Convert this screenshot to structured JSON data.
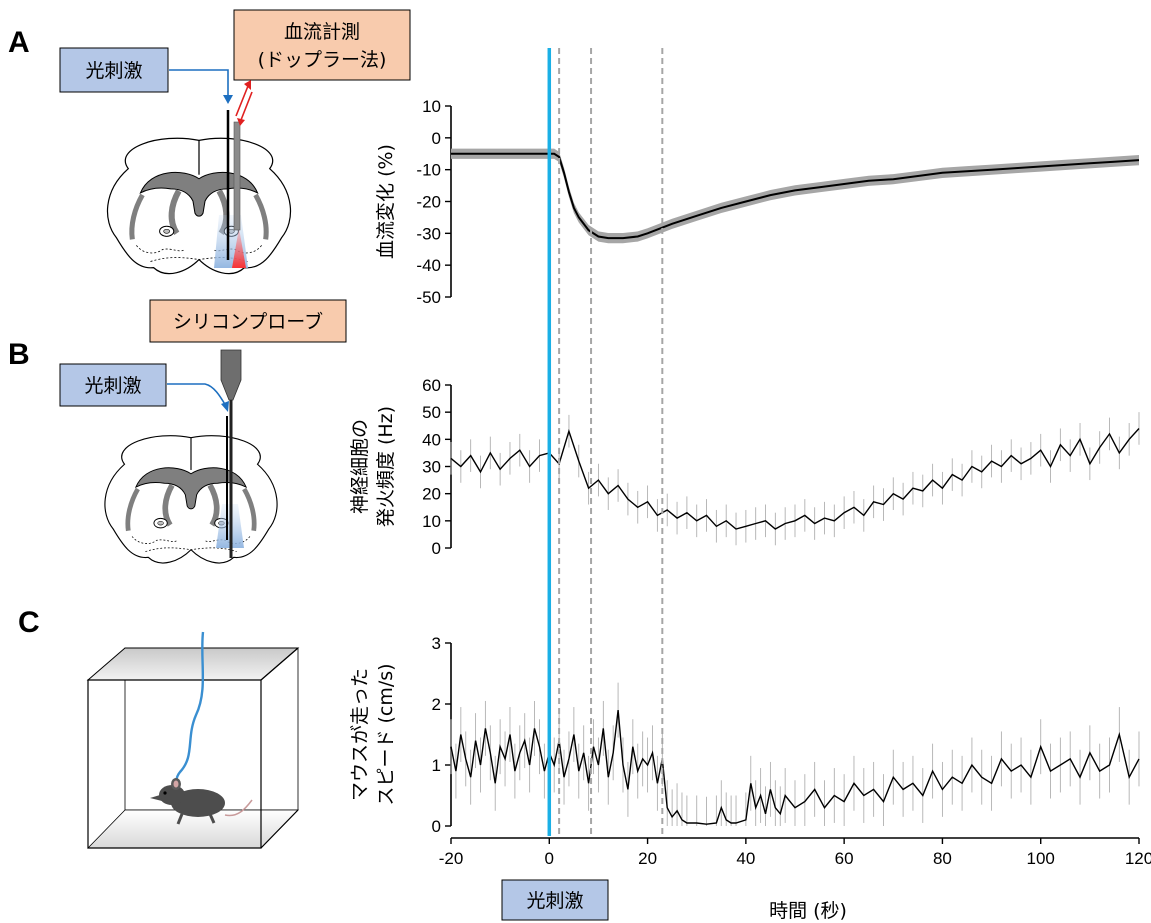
{
  "panels": {
    "a": "A",
    "b": "B",
    "c": "C"
  },
  "labels": {
    "stim_a": "光刺激",
    "stim_b": "光刺激",
    "stim_bottom": "光刺激",
    "doppler_line1": "血流計測",
    "doppler_line2": "(ドップラー法)",
    "probe": "シリコンプローブ"
  },
  "colors": {
    "stim_box": "#b4c7e7",
    "measure_box": "#f8cbad",
    "stim_line": "#1ab0e6",
    "epoch_line": "#a6a6a6",
    "trace": "#000000",
    "sem_band": "#a6a6a6",
    "error_bar": "#b0b0b0"
  },
  "icons": {
    "brain_a": "brain-section-icon",
    "brain_b": "brain-section-icon",
    "mouse": "mouse-icon",
    "arena": "arena-box-icon",
    "probe": "silicon-probe-icon"
  },
  "chart_data": [
    {
      "type": "line",
      "ylabel": "血流変化 (%)",
      "xlim": [
        -20,
        120
      ],
      "ylim": [
        -50,
        10
      ],
      "yticks": [
        "10",
        "0",
        "-10",
        "-20",
        "-30",
        "-40",
        "-50"
      ],
      "ytick_values": [
        10,
        0,
        -10,
        -20,
        -30,
        -40,
        -50
      ],
      "series": [
        {
          "x": [
            -20,
            -15,
            -10,
            -5,
            -1,
            0,
            1,
            2,
            3,
            4,
            5,
            6,
            8,
            10,
            12,
            15,
            18,
            20,
            25,
            30,
            35,
            40,
            45,
            50,
            55,
            60,
            65,
            70,
            75,
            80,
            85,
            90,
            95,
            100,
            105,
            110,
            115,
            120
          ],
          "y": [
            -5,
            -5,
            -5,
            -5,
            -5,
            -5,
            -5,
            -6,
            -11,
            -17,
            -22,
            -25,
            -29,
            -31,
            -31.5,
            -31.5,
            -31,
            -30,
            -27,
            -24.5,
            -22,
            -20,
            -18,
            -16.5,
            -15.5,
            -14.5,
            -13.5,
            -13,
            -12,
            -11,
            -10.5,
            -10,
            -9.5,
            -9,
            -8.5,
            -8,
            -7.5,
            -7
          ],
          "sem": 1.6
        }
      ]
    },
    {
      "type": "line",
      "ylabel": "神経細胞の\n発火頻度 (Hz)",
      "xlim": [
        -20,
        120
      ],
      "ylim": [
        0,
        60
      ],
      "yticks": [
        "60",
        "50",
        "40",
        "30",
        "20",
        "10",
        "0"
      ],
      "ytick_values": [
        60,
        50,
        40,
        30,
        20,
        10,
        0
      ],
      "series": [
        {
          "x": [
            -20,
            -18,
            -16,
            -14,
            -12,
            -10,
            -8,
            -6,
            -4,
            -2,
            0,
            2,
            4,
            6,
            8,
            10,
            12,
            14,
            16,
            18,
            20,
            22,
            24,
            26,
            28,
            30,
            32,
            34,
            36,
            38,
            40,
            42,
            44,
            46,
            48,
            50,
            52,
            54,
            56,
            58,
            60,
            62,
            64,
            66,
            68,
            70,
            72,
            74,
            76,
            78,
            80,
            82,
            84,
            86,
            88,
            90,
            92,
            94,
            96,
            98,
            100,
            102,
            104,
            106,
            108,
            110,
            112,
            114,
            116,
            118,
            120
          ],
          "y": [
            33,
            30,
            34,
            28,
            35,
            29,
            33,
            36,
            30,
            34,
            35,
            31,
            43,
            32,
            22,
            25,
            20,
            23,
            18,
            15,
            17,
            12,
            14,
            11,
            13,
            10,
            12,
            8,
            10,
            7,
            8,
            9,
            10,
            7,
            9,
            10,
            12,
            9,
            11,
            10,
            13,
            15,
            12,
            17,
            16,
            20,
            18,
            22,
            21,
            25,
            22,
            27,
            25,
            30,
            28,
            32,
            30,
            34,
            31,
            33,
            36,
            30,
            38,
            34,
            40,
            31,
            37,
            42,
            35,
            40,
            44
          ],
          "err": 6
        }
      ]
    },
    {
      "type": "line",
      "ylabel": "マウスが走った\nスピード (cm/s)",
      "xlabel": "時間 (秒)",
      "xlim": [
        -20,
        120
      ],
      "ylim": [
        0,
        3
      ],
      "yticks": [
        "3",
        "2",
        "1",
        "0"
      ],
      "ytick_values": [
        3,
        2,
        1,
        0
      ],
      "xticks": [
        "-20",
        "0",
        "20",
        "40",
        "60",
        "80",
        "100",
        "120"
      ],
      "xtick_values": [
        -20,
        0,
        20,
        40,
        60,
        80,
        100,
        120
      ],
      "series": [
        {
          "x": [
            -20,
            -19,
            -18,
            -17,
            -16,
            -15,
            -14,
            -13,
            -12,
            -11,
            -10,
            -9,
            -8,
            -7,
            -6,
            -5,
            -4,
            -3,
            -2,
            -1,
            0,
            1,
            2,
            3,
            4,
            5,
            6,
            7,
            8,
            9,
            10,
            11,
            12,
            13,
            14,
            15,
            16,
            17,
            18,
            19,
            20,
            21,
            22,
            23,
            24,
            25,
            26,
            27,
            28,
            30,
            32,
            34,
            35,
            36,
            37,
            38,
            40,
            41,
            42,
            43,
            44,
            45,
            46,
            47,
            48,
            50,
            52,
            54,
            56,
            58,
            60,
            62,
            64,
            66,
            68,
            70,
            72,
            74,
            76,
            78,
            80,
            82,
            84,
            86,
            88,
            90,
            92,
            94,
            96,
            98,
            100,
            102,
            104,
            106,
            108,
            110,
            112,
            114,
            116,
            118,
            120
          ],
          "y": [
            1.3,
            0.9,
            1.5,
            1.1,
            0.8,
            1.4,
            1.0,
            1.6,
            1.2,
            0.7,
            1.3,
            1.1,
            1.5,
            0.9,
            1.2,
            1.4,
            1.0,
            1.6,
            1.3,
            0.9,
            1.2,
            1.0,
            1.4,
            0.8,
            1.1,
            1.5,
            0.9,
            1.2,
            0.7,
            1.3,
            1.0,
            1.6,
            0.8,
            1.2,
            1.9,
            1.0,
            0.6,
            1.3,
            0.9,
            1.1,
            1.0,
            1.2,
            0.7,
            1.1,
            0.3,
            0.15,
            0.25,
            0.1,
            0.05,
            0.05,
            0.03,
            0.05,
            0.3,
            0.1,
            0.05,
            0.05,
            0.1,
            0.7,
            0.3,
            0.5,
            0.2,
            0.6,
            0.3,
            0.2,
            0.5,
            0.3,
            0.4,
            0.6,
            0.3,
            0.5,
            0.4,
            0.7,
            0.5,
            0.6,
            0.4,
            0.8,
            0.6,
            0.7,
            0.5,
            0.9,
            0.6,
            0.8,
            0.7,
            1.0,
            0.8,
            0.7,
            1.1,
            0.9,
            1.0,
            0.8,
            1.3,
            0.9,
            1.0,
            1.1,
            0.8,
            1.2,
            0.9,
            1.0,
            1.5,
            0.8,
            1.1
          ],
          "err": 0.45
        }
      ]
    }
  ],
  "markers": {
    "stim_time": 0,
    "epochs": [
      2,
      8.5,
      23
    ]
  }
}
